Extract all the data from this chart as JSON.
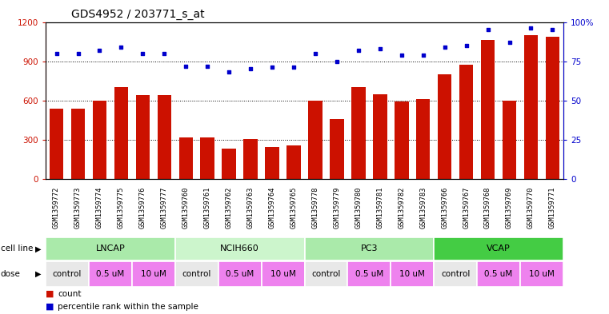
{
  "title": "GDS4952 / 203771_s_at",
  "samples": [
    "GSM1359772",
    "GSM1359773",
    "GSM1359774",
    "GSM1359775",
    "GSM1359776",
    "GSM1359777",
    "GSM1359760",
    "GSM1359761",
    "GSM1359762",
    "GSM1359763",
    "GSM1359764",
    "GSM1359765",
    "GSM1359778",
    "GSM1359779",
    "GSM1359780",
    "GSM1359781",
    "GSM1359782",
    "GSM1359783",
    "GSM1359766",
    "GSM1359767",
    "GSM1359768",
    "GSM1359769",
    "GSM1359770",
    "GSM1359771"
  ],
  "counts": [
    540,
    540,
    600,
    700,
    640,
    640,
    320,
    315,
    235,
    305,
    245,
    255,
    600,
    460,
    700,
    645,
    590,
    610,
    800,
    875,
    1060,
    600,
    1100,
    1090
  ],
  "percentiles": [
    80,
    80,
    82,
    84,
    80,
    80,
    72,
    72,
    68,
    70,
    71,
    71,
    80,
    75,
    82,
    83,
    79,
    79,
    84,
    85,
    95,
    87,
    96,
    95
  ],
  "cell_lines": [
    {
      "name": "LNCAP",
      "start": 0,
      "end": 6,
      "color": "#aaeaaa"
    },
    {
      "name": "NCIH660",
      "start": 6,
      "end": 12,
      "color": "#ccf5cc"
    },
    {
      "name": "PC3",
      "start": 12,
      "end": 18,
      "color": "#aaeaaa"
    },
    {
      "name": "VCAP",
      "start": 18,
      "end": 24,
      "color": "#44cc44"
    }
  ],
  "dose_groups": [
    {
      "label": "control",
      "start": 0,
      "end": 2,
      "color": "#e8e8e8"
    },
    {
      "label": "0.5 uM",
      "start": 2,
      "end": 4,
      "color": "#ee82ee"
    },
    {
      "label": "10 uM",
      "start": 4,
      "end": 6,
      "color": "#ee82ee"
    },
    {
      "label": "control",
      "start": 6,
      "end": 8,
      "color": "#e8e8e8"
    },
    {
      "label": "0.5 uM",
      "start": 8,
      "end": 10,
      "color": "#ee82ee"
    },
    {
      "label": "10 uM",
      "start": 10,
      "end": 12,
      "color": "#ee82ee"
    },
    {
      "label": "control",
      "start": 12,
      "end": 14,
      "color": "#e8e8e8"
    },
    {
      "label": "0.5 uM",
      "start": 14,
      "end": 16,
      "color": "#ee82ee"
    },
    {
      "label": "10 uM",
      "start": 16,
      "end": 18,
      "color": "#ee82ee"
    },
    {
      "label": "control",
      "start": 18,
      "end": 20,
      "color": "#e8e8e8"
    },
    {
      "label": "0.5 uM",
      "start": 20,
      "end": 22,
      "color": "#ee82ee"
    },
    {
      "label": "10 uM",
      "start": 22,
      "end": 24,
      "color": "#ee82ee"
    }
  ],
  "bar_color": "#cc1100",
  "dot_color": "#0000cc",
  "ylim_left": [
    0,
    1200
  ],
  "ylim_right": [
    0,
    100
  ],
  "yticks_left": [
    0,
    300,
    600,
    900,
    1200
  ],
  "yticks_right": [
    0,
    25,
    50,
    75,
    100
  ],
  "ytick_labels_right": [
    "0",
    "25",
    "50",
    "75",
    "100%"
  ],
  "xtick_bg_color": "#d8d8d8",
  "cell_line_border_color": "#ffffff",
  "dose_border_color": "#ffffff"
}
